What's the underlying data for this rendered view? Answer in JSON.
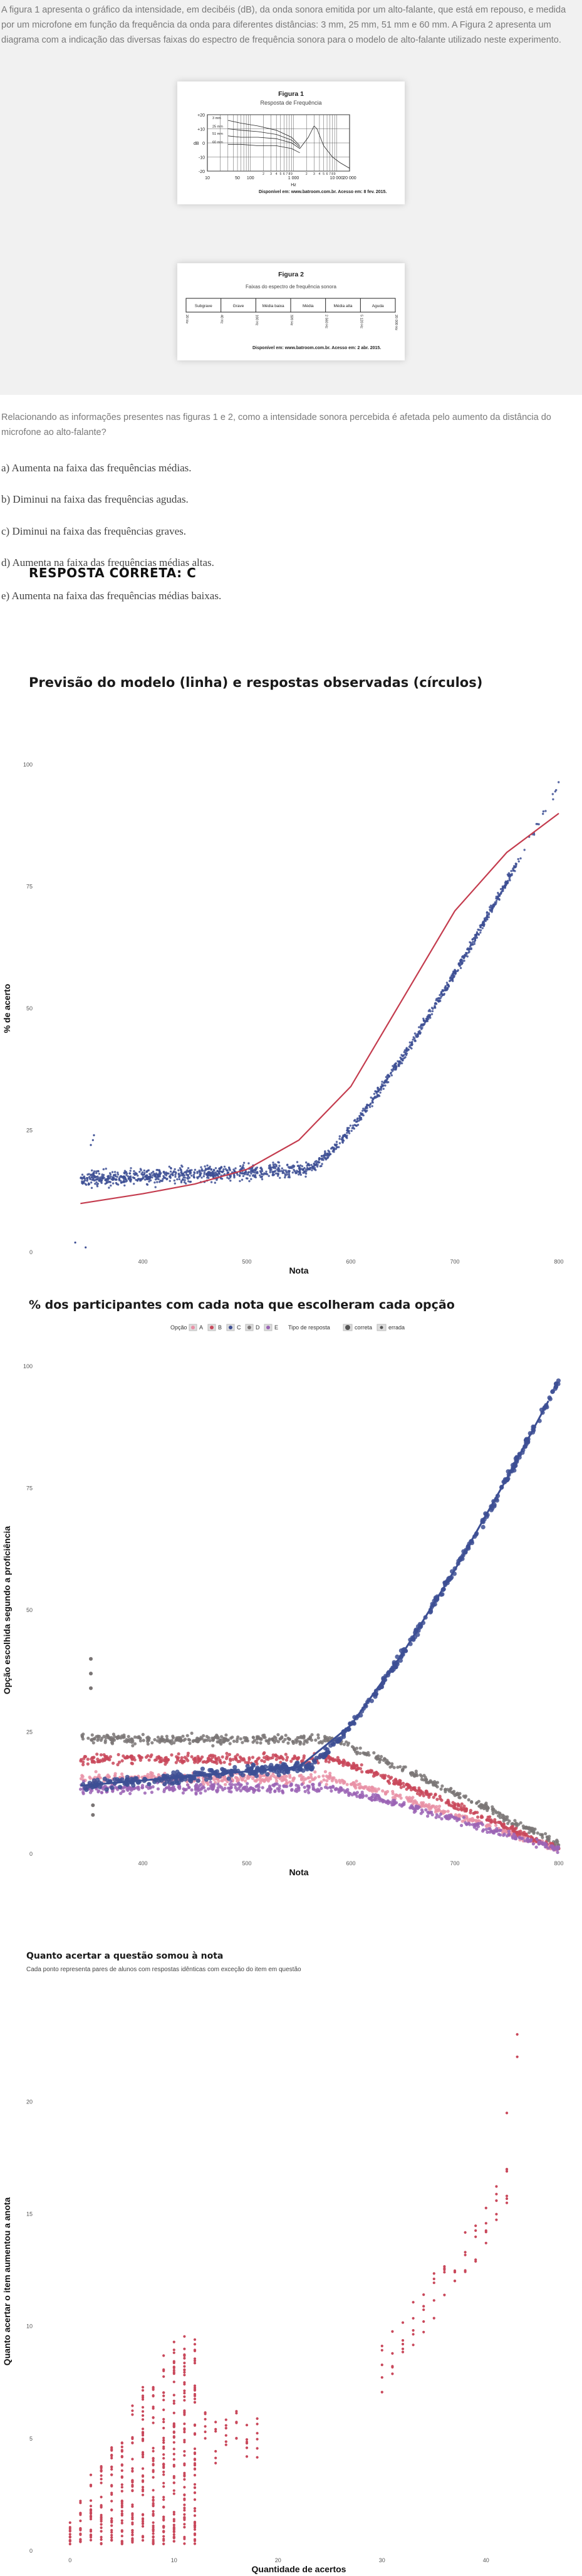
{
  "intro_text": "A figura 1 apresenta o gráfico da intensidade, em decibéis (dB), da onda sonora emitida por um alto-falante, que está em repouso, e medida por um microfone em função da frequência da onda para diferentes distâncias: 3 mm, 25 mm, 51 mm e 60 mm. A Figura 2 apresenta um diagrama com a indicação das diversas faixas do espectro de frequência sonora para o modelo de alto-falante utilizado neste experimento.",
  "figure1": {
    "label": "Figura 1",
    "title": "Resposta de Frequência",
    "y_label": "dB",
    "x_label": "Hz",
    "y_ticks": [
      "+20",
      "+10",
      "0",
      "-10",
      "-20"
    ],
    "x_ticks": [
      "10",
      "50",
      "100",
      "1 000",
      "10 000",
      "20 000"
    ],
    "minor_ticks": [
      "2",
      "3",
      "4",
      "5",
      "6",
      "7",
      "8",
      "9"
    ],
    "curve_labels": [
      "3 mm",
      "25 mm",
      "51 mm",
      "60 mm"
    ],
    "credit": "Disponível em: www.batroom.com.br. Acesso em: 8 fev. 2015."
  },
  "figure2": {
    "label": "Figura 2",
    "title": "Faixas do espectro de frequência sonora",
    "bands": [
      "Subgrave",
      "Grave",
      "Média baixa",
      "Média",
      "Média alta",
      "Aguda"
    ],
    "freqs": [
      "20 Hz",
      "40 Hz",
      "160 Hz",
      "320 Hz",
      "2 560 Hz",
      "5 120 Hz",
      "20 000 Hz"
    ],
    "credit": "Disponível em: www.batroom.com.br. Acesso em: 2 abr. 2015."
  },
  "question_text": "Relacionando as informações presentes nas figuras 1 e 2, como a intensidade sonora percebida é afetada pelo aumento da distância do microfone ao alto-falante?",
  "alternatives": [
    "a)   Aumenta na faixa das frequências médias.",
    "b)   Diminui na faixa das frequências agudas.",
    "c)   Diminui na faixa das frequências graves.",
    "d)   Aumenta na faixa das frequências médias altas.",
    "e)   Aumenta na faixa das frequências médias baixas."
  ],
  "correct_answer": "RESPOSTA CORRETA: C",
  "chart_data": [
    {
      "type": "scatter",
      "title": "Previsão do modelo (linha) e respostas observadas (círculos)",
      "xlabel": "Nota",
      "ylabel": "% de acerto",
      "x_ticks": [
        "400",
        "500",
        "600",
        "700",
        "800"
      ],
      "y_ticks": [
        "0",
        "25",
        "50",
        "75",
        "100"
      ],
      "xlim": [
        300,
        800
      ],
      "ylim": [
        0,
        100
      ],
      "model_curve": {
        "color": "#c43c4e",
        "x": [
          340,
          400,
          450,
          500,
          550,
          600,
          650,
          700,
          750,
          800
        ],
        "y": [
          10,
          12,
          14,
          17,
          23,
          34,
          52,
          70,
          82,
          90
        ]
      },
      "observed": {
        "color": "#3d4f94",
        "plateau_y": 15,
        "rise_start_x": 560,
        "x_end": 800,
        "y_end": 96
      }
    },
    {
      "type": "scatter",
      "title": "% dos participantes com cada nota que escolheram cada opção",
      "xlabel": "Nota",
      "ylabel": "Opção escolhida segundo a proficiência",
      "legend_option_title": "Opção",
      "legend_options": [
        "A",
        "B",
        "C",
        "D",
        "E"
      ],
      "legend_type_title": "Tipo de resposta",
      "legend_types": [
        "correta",
        "errada"
      ],
      "x_ticks": [
        "400",
        "500",
        "600",
        "700",
        "800"
      ],
      "y_ticks": [
        "0",
        "25",
        "50",
        "75",
        "100"
      ],
      "xlim": [
        300,
        800
      ],
      "ylim": [
        0,
        100
      ],
      "series": [
        {
          "name": "C",
          "color": "#3d4f94",
          "start_y": 14,
          "end_y": 97
        },
        {
          "name": "D",
          "color": "#7a7575",
          "start_y": 22,
          "end_y": 2
        },
        {
          "name": "B",
          "color": "#c9485b",
          "start_y": 18,
          "end_y": 1
        },
        {
          "name": "A",
          "color": "#e990a6",
          "start_y": 14,
          "end_y": 1
        },
        {
          "name": "E",
          "color": "#9b64b5",
          "start_y": 12,
          "end_y": 1
        }
      ]
    },
    {
      "type": "scatter",
      "title": "Quanto acertar a questão somou à nota",
      "subtitle": "Cada ponto representa pares de alunos com respostas idênticas com exceção do item em questão",
      "xlabel": "Quantidade de acertos",
      "ylabel": "Quanto acertar o item aumentou a anota",
      "x_ticks": [
        "0",
        "10",
        "20",
        "30",
        "40"
      ],
      "y_ticks": [
        "0",
        "5",
        "10",
        "15",
        "20"
      ],
      "xlim": [
        -3,
        47
      ],
      "ylim": [
        0,
        24
      ],
      "color": "#c9485b"
    }
  ]
}
